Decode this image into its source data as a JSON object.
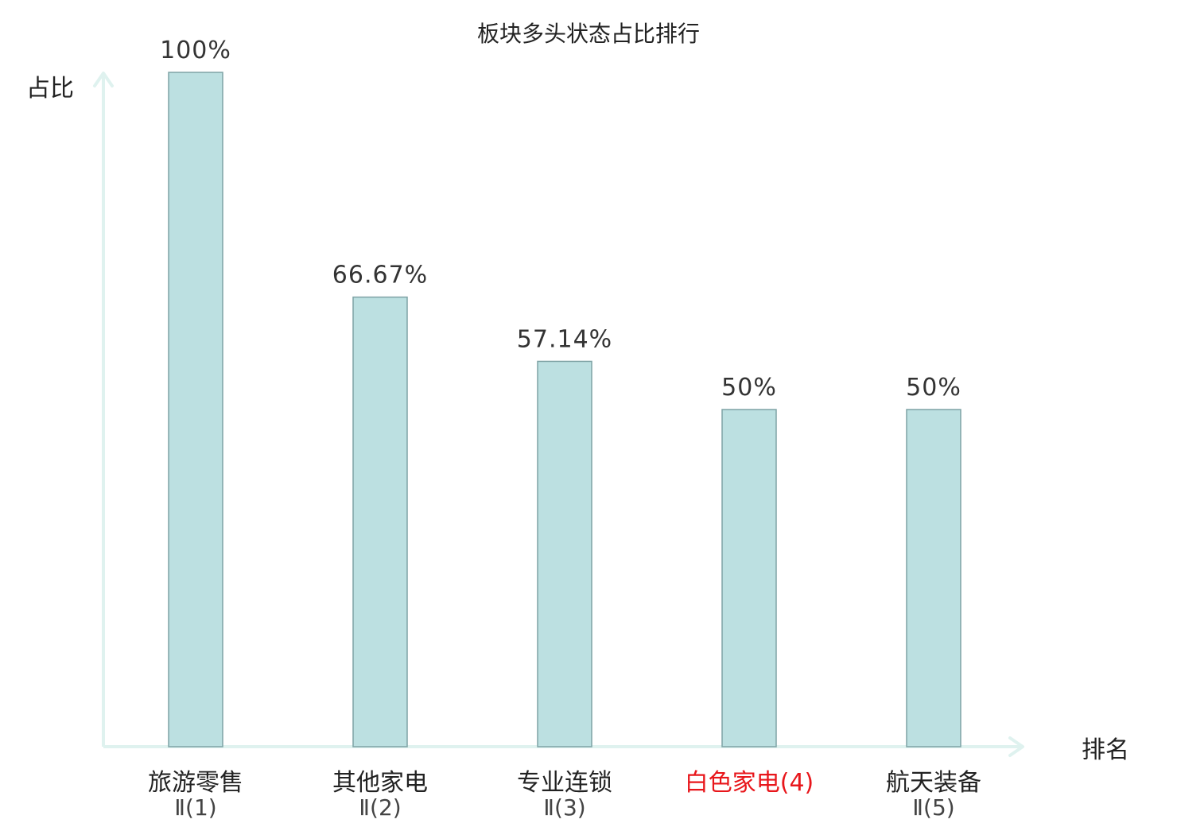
{
  "chart_data": {
    "type": "bar",
    "title": "板块多头状态占比排行",
    "xlabel": "排名",
    "ylabel": "占比",
    "ylim": [
      0,
      100
    ],
    "grid": false,
    "legend": "none",
    "categories": [
      {
        "line1": "旅游零售",
        "line2": "Ⅱ(1)",
        "highlight": false
      },
      {
        "line1": "其他家电",
        "line2": "Ⅱ(2)",
        "highlight": false
      },
      {
        "line1": "专业连锁",
        "line2": "Ⅱ(3)",
        "highlight": false
      },
      {
        "line1": "白色家电(4)",
        "line2": "",
        "highlight": true
      },
      {
        "line1": "航天装备",
        "line2": "Ⅱ(5)",
        "highlight": false
      }
    ],
    "values": [
      100,
      66.67,
      57.14,
      50,
      50
    ],
    "value_labels": [
      "100%",
      "66.67%",
      "57.14%",
      "50%",
      "50%"
    ],
    "colors": {
      "bar_fill": "#bce0e1",
      "bar_stroke": "#7fa3a5",
      "axis": "#dff2ef",
      "text": "#222222",
      "value_text": "#333333",
      "secondary_text": "#444444",
      "highlight": "#e8161b"
    }
  }
}
